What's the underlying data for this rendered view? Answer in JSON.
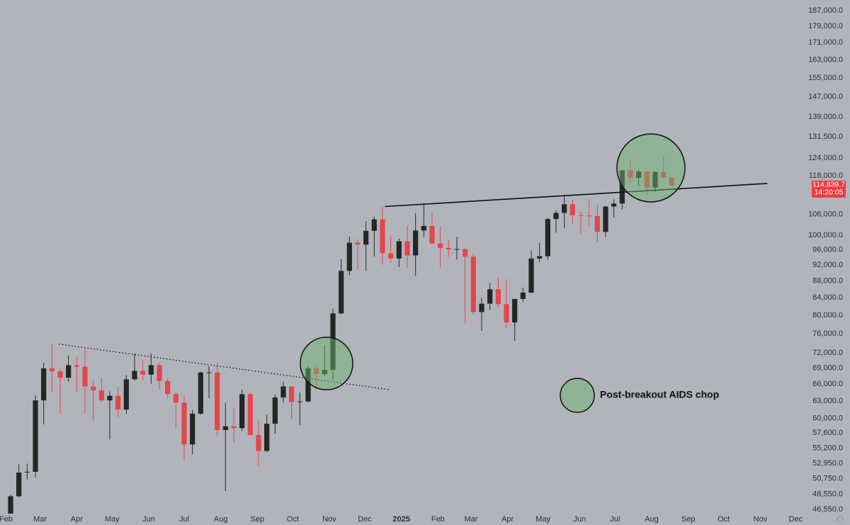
{
  "chart_data": {
    "type": "candlestick",
    "log_scale": true,
    "up_color": "#262626",
    "down_color": "#e2474b",
    "xlim": [
      -5,
      679
    ],
    "ylim": [
      46010,
      192600
    ],
    "x": [
      4,
      11,
      18,
      25,
      32,
      39,
      46,
      53,
      60,
      67,
      74,
      81,
      88,
      95,
      102,
      109,
      116,
      123,
      130,
      137,
      144,
      151,
      158,
      165,
      172,
      179,
      186,
      193,
      200,
      207,
      214,
      221,
      228,
      235,
      242,
      249,
      256,
      263,
      270,
      277,
      284,
      291,
      298,
      305,
      312,
      319,
      326,
      333,
      340,
      347,
      354,
      361,
      368,
      375,
      382,
      389,
      396,
      403,
      410,
      417,
      424,
      431,
      438,
      445,
      452,
      459,
      466,
      473,
      480,
      487,
      494,
      501,
      508,
      515,
      522,
      529,
      536,
      543,
      550,
      557,
      564
    ],
    "open": [
      42600,
      48300,
      51600,
      51700,
      63100,
      69000,
      68400,
      67200,
      69600,
      69300,
      65600,
      64900,
      63100,
      63900,
      61500,
      66900,
      68500,
      67800,
      69600,
      66600,
      64200,
      62700,
      55800,
      60800,
      68200,
      68200,
      58100,
      58700,
      58400,
      64200,
      57300,
      54800,
      59100,
      63600,
      65600,
      62800,
      62900,
      69000,
      67900,
      68700,
      80400,
      90500,
      97900,
      97400,
      101200,
      104500,
      95100,
      93700,
      98300,
      94500,
      101300,
      102600,
      97700,
      96500,
      96100,
      96200,
      94200,
      80700,
      82600,
      86000,
      82500,
      78400,
      83700,
      85200,
      93700,
      94300,
      104600,
      106400,
      109000,
      105700,
      105600,
      105500,
      100900,
      108300,
      109200,
      119800,
      117300,
      119400,
      114200,
      119300,
      117400
    ],
    "high": [
      48500,
      52800,
      52900,
      64000,
      70100,
      73800,
      68900,
      71500,
      71300,
      72800,
      66900,
      67200,
      64700,
      65500,
      67700,
      71900,
      70600,
      71900,
      70100,
      67200,
      64500,
      63800,
      61400,
      68400,
      69400,
      70000,
      62700,
      61800,
      65000,
      64500,
      59800,
      60600,
      64100,
      66500,
      65600,
      64500,
      69400,
      69500,
      73600,
      81500,
      93500,
      99600,
      98900,
      104000,
      105300,
      108200,
      99900,
      99000,
      102700,
      106400,
      109300,
      106400,
      102500,
      98800,
      99500,
      96500,
      95000,
      84000,
      87500,
      88800,
      88500,
      83800,
      86400,
      95800,
      97900,
      104900,
      107100,
      111900,
      110400,
      106800,
      110500,
      108900,
      108500,
      110500,
      119900,
      123200,
      120200,
      119800,
      119400,
      124500,
      117600
    ],
    "low": [
      42300,
      48200,
      50600,
      50900,
      59000,
      64600,
      60800,
      66500,
      64500,
      60700,
      59600,
      62800,
      56600,
      60200,
      60800,
      66700,
      66700,
      66100,
      65100,
      63400,
      58400,
      53500,
      54300,
      60600,
      63500,
      57100,
      49000,
      56100,
      57900,
      57200,
      52600,
      54600,
      57500,
      62700,
      59900,
      58900,
      62700,
      65100,
      67500,
      66800,
      80200,
      89400,
      90800,
      90500,
      94200,
      92100,
      92500,
      91500,
      91200,
      89300,
      99500,
      97500,
      91200,
      94100,
      93400,
      78200,
      80000,
      76600,
      81200,
      81600,
      77200,
      74500,
      83000,
      85100,
      92800,
      93400,
      100700,
      102000,
      103000,
      100400,
      102700,
      98200,
      99500,
      105100,
      107500,
      115700,
      114700,
      112000,
      112700,
      117200,
      114600
    ],
    "close": [
      48300,
      51600,
      51700,
      63100,
      69000,
      68400,
      67200,
      69600,
      69300,
      65600,
      64900,
      63100,
      63900,
      61500,
      66900,
      68500,
      67800,
      69600,
      66600,
      64200,
      62700,
      55800,
      60800,
      68200,
      68200,
      58100,
      58700,
      58400,
      64200,
      57300,
      54800,
      59100,
      63600,
      65600,
      62800,
      62900,
      69000,
      67900,
      68700,
      80400,
      90500,
      97900,
      97400,
      101200,
      104500,
      95100,
      93700,
      98300,
      94500,
      101300,
      102600,
      97700,
      96500,
      96100,
      96200,
      94200,
      80700,
      82600,
      86000,
      82500,
      78400,
      83700,
      85200,
      93700,
      94300,
      104600,
      106400,
      109000,
      105700,
      105600,
      105500,
      100900,
      108300,
      109200,
      119800,
      117300,
      119400,
      114200,
      119300,
      117400,
      114839.7
    ],
    "xticks": [
      {
        "value": 0,
        "label": "Feb"
      },
      {
        "value": 29,
        "label": "Mar"
      },
      {
        "value": 60,
        "label": "Apr"
      },
      {
        "value": 90,
        "label": "May"
      },
      {
        "value": 121,
        "label": "Jun"
      },
      {
        "value": 151,
        "label": "Jul"
      },
      {
        "value": 182,
        "label": "Aug"
      },
      {
        "value": 213,
        "label": "Sep"
      },
      {
        "value": 243,
        "label": "Oct"
      },
      {
        "value": 274,
        "label": "Nov"
      },
      {
        "value": 304,
        "label": "Dec"
      },
      {
        "value": 335,
        "label": "2025"
      },
      {
        "value": 366,
        "label": "Feb"
      },
      {
        "value": 394,
        "label": "Mar"
      },
      {
        "value": 425,
        "label": "Apr"
      },
      {
        "value": 455,
        "label": "May"
      },
      {
        "value": 486,
        "label": "Jun"
      },
      {
        "value": 516,
        "label": "Jul"
      },
      {
        "value": 547,
        "label": "Aug"
      },
      {
        "value": 578,
        "label": "Sep"
      },
      {
        "value": 608,
        "label": "Oct"
      },
      {
        "value": 639,
        "label": "Nov"
      },
      {
        "value": 669,
        "label": "Dec"
      }
    ],
    "yticks": [
      {
        "value": 46550,
        "label": "46,550.0"
      },
      {
        "value": 48550,
        "label": "48,550.0"
      },
      {
        "value": 50750,
        "label": "50,750.0"
      },
      {
        "value": 52950,
        "label": "52,950.0"
      },
      {
        "value": 55200,
        "label": "55,200.0"
      },
      {
        "value": 57600,
        "label": "57,600.0"
      },
      {
        "value": 60000,
        "label": "60,000.0"
      },
      {
        "value": 63000,
        "label": "63,000.0"
      },
      {
        "value": 66000,
        "label": "66,000.0"
      },
      {
        "value": 69000,
        "label": "69,000.0"
      },
      {
        "value": 72000,
        "label": "72,000.0"
      },
      {
        "value": 76000,
        "label": "76,000.0"
      },
      {
        "value": 80000,
        "label": "80,000.0"
      },
      {
        "value": 84000,
        "label": "84,000.0"
      },
      {
        "value": 88000,
        "label": "88,000.0"
      },
      {
        "value": 92000,
        "label": "92,000.0"
      },
      {
        "value": 96000,
        "label": "96,000.0"
      },
      {
        "value": 100000,
        "label": "100,000.0"
      },
      {
        "value": 106000,
        "label": "106,000.0"
      },
      {
        "value": 118000,
        "label": "118,000.0"
      },
      {
        "value": 124000,
        "label": "124,000.0"
      },
      {
        "value": 131500,
        "label": "131,500.0"
      },
      {
        "value": 139000,
        "label": "139,000.0"
      },
      {
        "value": 147000,
        "label": "147,000.0"
      },
      {
        "value": 155000,
        "label": "155,000.0"
      },
      {
        "value": 163000,
        "label": "163,000.0"
      },
      {
        "value": 171000,
        "label": "171,000.0"
      },
      {
        "value": 179000,
        "label": "179,000.0"
      },
      {
        "value": 187000,
        "label": "187,000.0"
      }
    ],
    "trendlines": [
      {
        "x": [
          45,
          325
        ],
        "y": [
          73800,
          65000
        ],
        "style": "dotted"
      },
      {
        "x": [
          321,
          645
        ],
        "y": [
          108300,
          115500
        ],
        "style": "solid"
      }
    ],
    "annotation": "Post-breakout AIDS chop",
    "price_label": "114,839.7",
    "time_label": "14:20:05"
  }
}
